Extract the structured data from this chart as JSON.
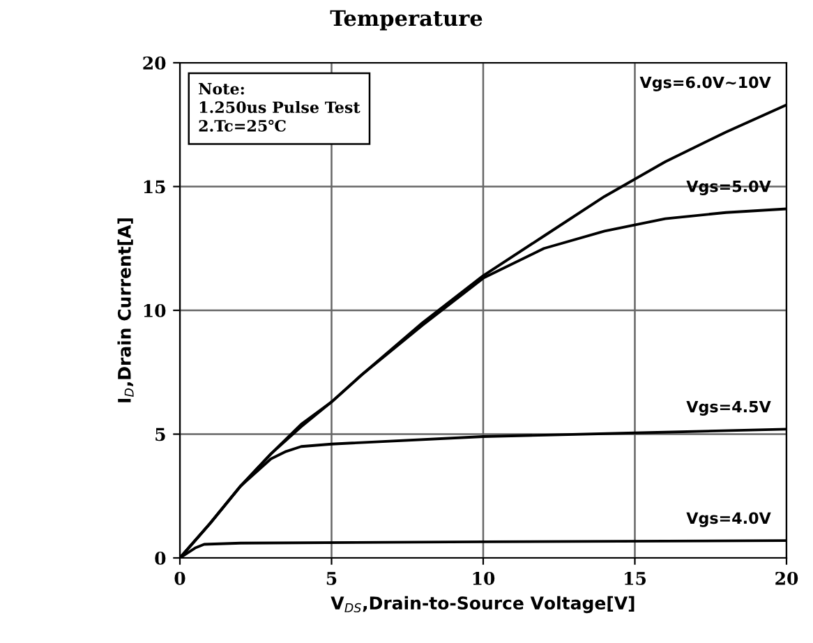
{
  "chart_data": {
    "type": "line",
    "title": "Temperature",
    "xlabel": "V$_{DS}$,Drain-to-Source Voltage[V]",
    "ylabel": "I$_{D}$,Drain Current[A]",
    "series": [
      {
        "name": "Vgs=6.0V~10V",
        "color": "#000000",
        "x": [
          0,
          1,
          2,
          3,
          4,
          5,
          6,
          8,
          10,
          12,
          14,
          16,
          18,
          20
        ],
        "values": [
          0,
          1.4,
          2.9,
          4.2,
          5.4,
          6.3,
          7.4,
          9.5,
          11.4,
          13.0,
          14.6,
          16.0,
          17.2,
          18.3
        ]
      },
      {
        "name": "Vgs=5.0V",
        "color": "#000000",
        "x": [
          0,
          1,
          2,
          3,
          4,
          5,
          6,
          8,
          10,
          12,
          14,
          16,
          18,
          20
        ],
        "values": [
          0,
          1.4,
          2.9,
          4.2,
          5.3,
          6.3,
          7.4,
          9.4,
          11.3,
          12.5,
          13.2,
          13.7,
          13.95,
          14.1
        ]
      },
      {
        "name": "Vgs=4.5V",
        "color": "#000000",
        "x": [
          0,
          1,
          2,
          3,
          3.5,
          4,
          5,
          10,
          15,
          20
        ],
        "values": [
          0,
          1.4,
          2.9,
          4.0,
          4.3,
          4.5,
          4.6,
          4.9,
          5.05,
          5.2
        ]
      },
      {
        "name": "Vgs=4.0V",
        "color": "#000000",
        "x": [
          0,
          0.5,
          0.8,
          2,
          10,
          20
        ],
        "values": [
          0,
          0.4,
          0.55,
          0.6,
          0.65,
          0.7
        ]
      }
    ],
    "annotations": [
      "Note:\n1.250us Pulse Test\n2.Tc=25℃"
    ],
    "xlim": [
      0,
      20
    ],
    "ylim": [
      0,
      20
    ],
    "xticks": [
      0,
      5,
      10,
      15,
      20
    ],
    "yticks": [
      0,
      5,
      10,
      15,
      20
    ],
    "grid": true,
    "line_style": "solid",
    "marker": "none"
  }
}
